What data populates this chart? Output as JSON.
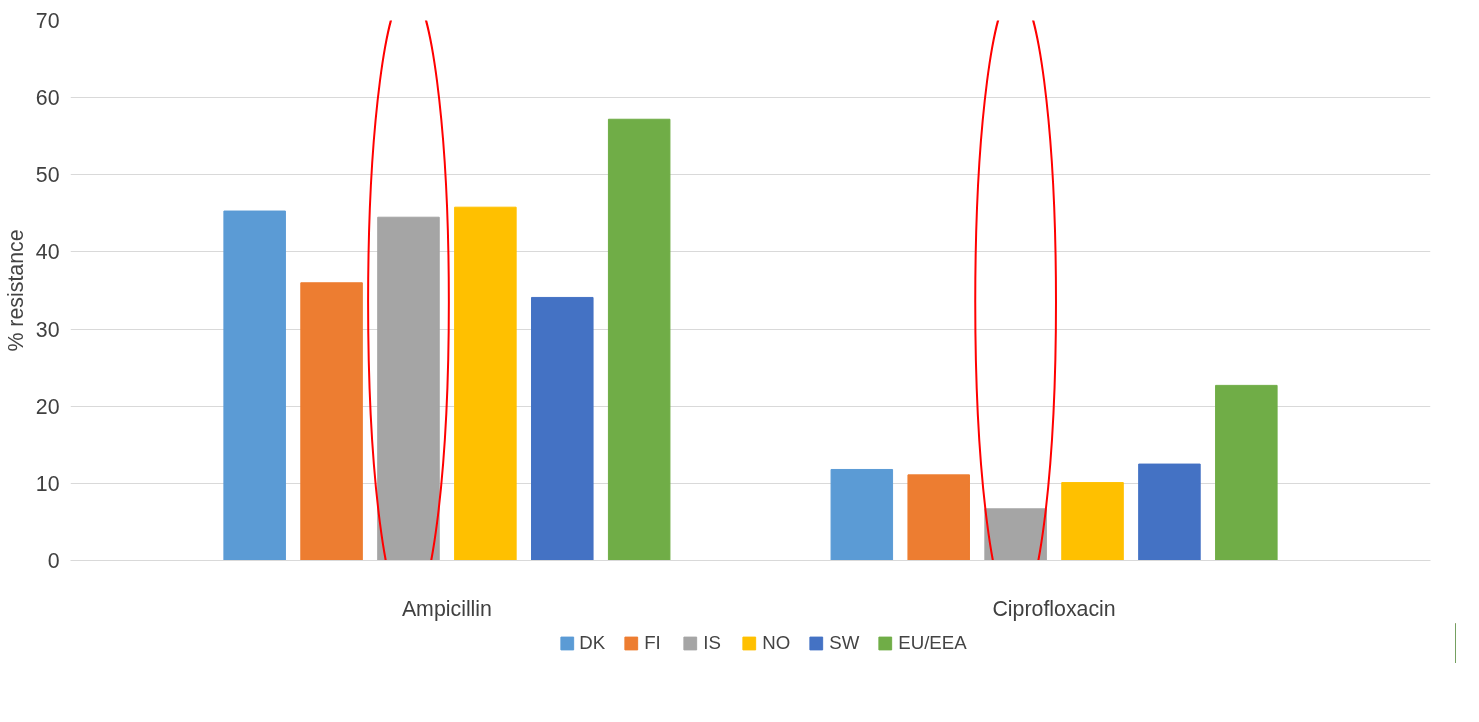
{
  "chart_data": {
    "type": "bar",
    "ylabel": "% resistance",
    "categories": [
      "Ampicillin",
      "Ciprofloxacin"
    ],
    "series": [
      {
        "name": "DK",
        "color": "#5b9bd5",
        "values": [
          45.3,
          11.8
        ]
      },
      {
        "name": "FI",
        "color": "#ed7d31",
        "values": [
          36.0,
          11.1
        ]
      },
      {
        "name": "IS",
        "color": "#a5a5a5",
        "values": [
          44.5,
          6.7
        ]
      },
      {
        "name": "NO",
        "color": "#ffc000",
        "values": [
          45.8,
          10.1
        ]
      },
      {
        "name": "SW",
        "color": "#4472c4",
        "values": [
          34.1,
          12.5
        ]
      },
      {
        "name": "EU/EEA",
        "color": "#70ad47",
        "values": [
          57.2,
          22.7
        ]
      }
    ],
    "ylim": [
      0,
      70
    ],
    "yticks": [
      0,
      10,
      20,
      30,
      40,
      50,
      60,
      70
    ],
    "grid": "y",
    "legend": "bottom"
  }
}
